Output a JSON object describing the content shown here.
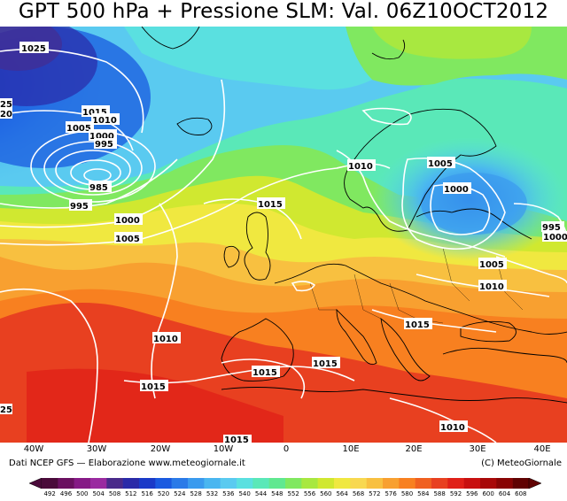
{
  "title": "GPT 500 hPa + Pressione SLM: Val. 06Z10OCT2012",
  "axis": {
    "longitude_labels": [
      "40W",
      "30W",
      "20W",
      "10W",
      "0",
      "10E",
      "20E",
      "30E",
      "40E"
    ]
  },
  "credits": {
    "left": "Dati NCEP GFS — Elaborazione www.meteogiornale.it",
    "right": "(C) MeteoGiornale"
  },
  "isobars": [
    {
      "label": "1025"
    },
    {
      "label": "25"
    },
    {
      "label": "20"
    },
    {
      "label": "1015"
    },
    {
      "label": "1010"
    },
    {
      "label": "1005"
    },
    {
      "label": "1000"
    },
    {
      "label": "995"
    },
    {
      "label": "985"
    },
    {
      "label": "995"
    },
    {
      "label": "1000"
    },
    {
      "label": "1005"
    },
    {
      "label": "1015"
    },
    {
      "label": "1010"
    },
    {
      "label": "1005"
    },
    {
      "label": "1000"
    },
    {
      "label": "995"
    },
    {
      "label": "1000"
    },
    {
      "label": "1005"
    },
    {
      "label": "1010"
    },
    {
      "label": "1010"
    },
    {
      "label": "1015"
    },
    {
      "label": "1015"
    },
    {
      "label": "1015"
    },
    {
      "label": "1015"
    },
    {
      "label": "1015"
    },
    {
      "label": "1010"
    },
    {
      "label": "25"
    }
  ],
  "colorbar": {
    "values": [
      "492",
      "496",
      "500",
      "504",
      "508",
      "512",
      "516",
      "520",
      "524",
      "528",
      "532",
      "536",
      "540",
      "544",
      "548",
      "552",
      "556",
      "560",
      "564",
      "568",
      "572",
      "576",
      "580",
      "584",
      "588",
      "592",
      "596",
      "600",
      "604",
      "608"
    ],
    "colors": [
      "#4a0a3a",
      "#6a1060",
      "#861a86",
      "#9a2aa0",
      "#4a2a8a",
      "#2a2aa8",
      "#1a3ac8",
      "#1a5ae0",
      "#2a7ae8",
      "#3a9aee",
      "#4ab6f0",
      "#5acaf0",
      "#5ae0e0",
      "#5ae8b8",
      "#60e890",
      "#80e860",
      "#a8e840",
      "#d0e830",
      "#f0e840",
      "#f8d850",
      "#f8c040",
      "#f8a030",
      "#f88020",
      "#f06020",
      "#e84020",
      "#e02018",
      "#c81010",
      "#a80808",
      "#880404",
      "#600202"
    ]
  }
}
